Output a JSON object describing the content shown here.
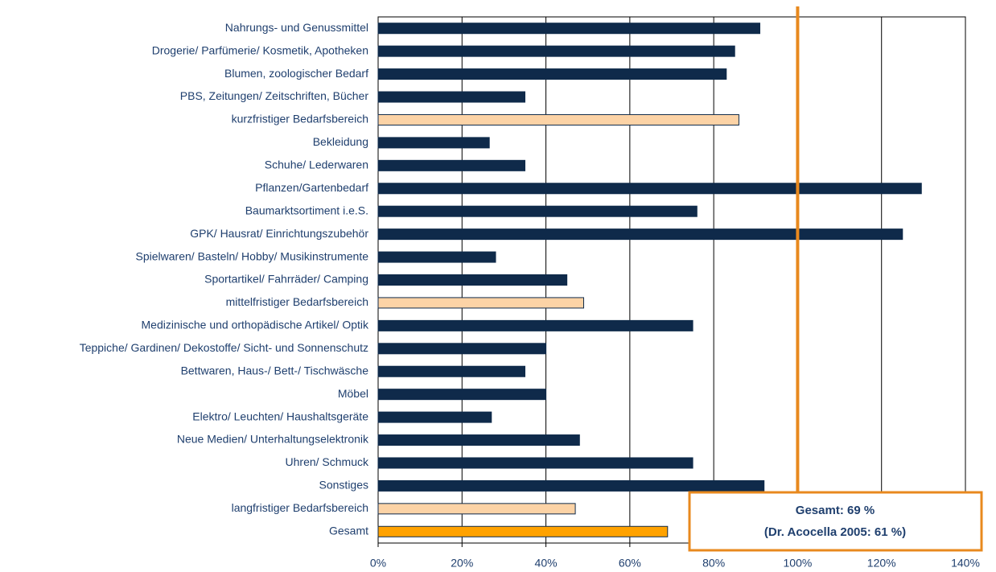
{
  "chart_data": {
    "type": "bar",
    "orientation": "horizontal",
    "categories": [
      "Nahrungs- und Genussmittel",
      "Drogerie/ Parfümerie/ Kosmetik, Apotheken",
      "Blumen, zoologischer Bedarf",
      "PBS, Zeitungen/ Zeitschriften, Bücher",
      "kurzfristiger Bedarfsbereich",
      "Bekleidung",
      "Schuhe/ Lederwaren",
      "Pflanzen/Gartenbedarf",
      "Baumarktsortiment i.e.S.",
      "GPK/ Hausrat/ Einrichtungszubehör",
      "Spielwaren/ Basteln/ Hobby/ Musikinstrumente",
      "Sportartikel/ Fahrräder/ Camping",
      "mittelfristiger Bedarfsbereich",
      "Medizinische und orthopädische Artikel/ Optik",
      "Teppiche/ Gardinen/ Dekostoffe/ Sicht- und Sonnenschutz",
      "Bettwaren, Haus-/ Bett-/ Tischwäsche",
      "Möbel",
      "Elektro/ Leuchten/ Haushaltsgeräte",
      "Neue Medien/ Unterhaltungselektronik",
      "Uhren/ Schmuck",
      "Sonstiges",
      "langfristiger Bedarfsbereich",
      "Gesamt"
    ],
    "values": [
      91,
      85,
      83,
      35,
      86,
      26.5,
      35,
      129.5,
      76,
      125,
      28,
      45,
      49,
      75,
      40,
      35,
      40,
      27,
      48,
      75,
      92,
      47,
      69
    ],
    "colors": [
      "#0f2a4a",
      "#0f2a4a",
      "#0f2a4a",
      "#0f2a4a",
      "#fcd3a6",
      "#0f2a4a",
      "#0f2a4a",
      "#0f2a4a",
      "#0f2a4a",
      "#0f2a4a",
      "#0f2a4a",
      "#0f2a4a",
      "#fcd3a6",
      "#0f2a4a",
      "#0f2a4a",
      "#0f2a4a",
      "#0f2a4a",
      "#0f2a4a",
      "#0f2a4a",
      "#0f2a4a",
      "#0f2a4a",
      "#fcd3a6",
      "#ffa200"
    ],
    "xlim": [
      0,
      140
    ],
    "xticks": [
      {
        "value": 0,
        "label": "0%"
      },
      {
        "value": 20,
        "label": "20%"
      },
      {
        "value": 40,
        "label": "40%"
      },
      {
        "value": 60,
        "label": "60%"
      },
      {
        "value": 80,
        "label": "80%"
      },
      {
        "value": 100,
        "label": "100%"
      },
      {
        "value": 120,
        "label": "120%"
      },
      {
        "value": 140,
        "label": "140%"
      }
    ],
    "grid": true,
    "reference_line": {
      "value": 100,
      "color": "#e8891e"
    },
    "annotations": [
      "Gesamt: 69 %",
      "(Dr. Acocella 2005: 61 %)"
    ]
  }
}
